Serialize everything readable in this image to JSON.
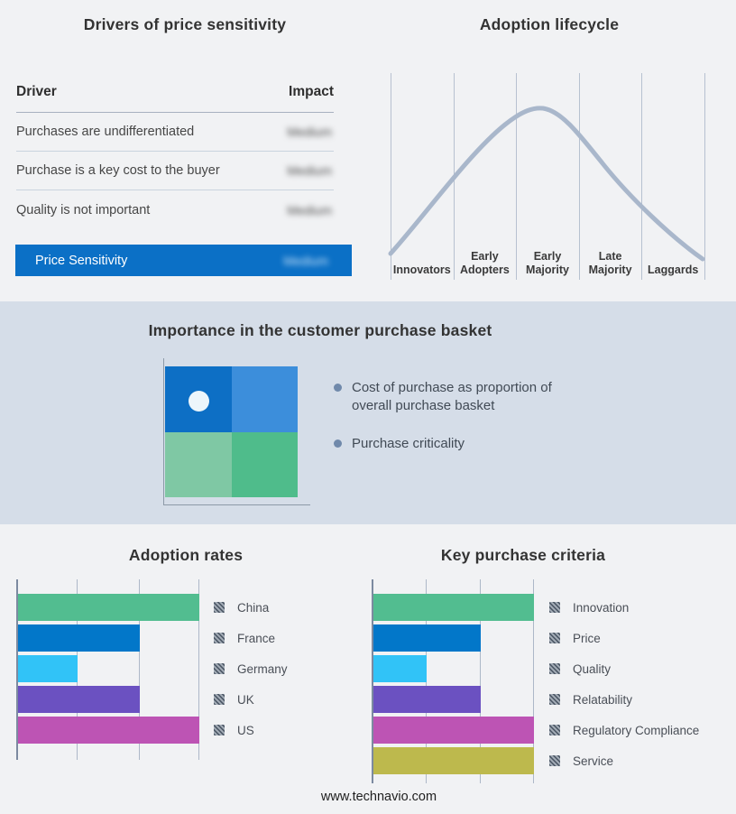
{
  "page": {
    "background": "#f1f2f4",
    "band_background": "#d5dde8",
    "footer": "www.technavio.com"
  },
  "drivers_panel": {
    "title": "Drivers of price sensitivity",
    "columns": [
      "Driver",
      "Impact"
    ],
    "rows": [
      {
        "driver": "Purchases are undifferentiated",
        "impact": "Medium",
        "impact_blurred": true
      },
      {
        "driver": "Purchase is a key cost to the buyer",
        "impact": "Medium",
        "impact_blurred": true
      },
      {
        "driver": "Quality is not important",
        "impact": "Medium",
        "impact_blurred": true
      }
    ],
    "summary_row": {
      "label": "Price Sensitivity",
      "impact": "Medium",
      "impact_blurred": true,
      "background": "#0b70c6"
    }
  },
  "basket_panel": {
    "title": "Importance in the customer purchase basket",
    "bullets": [
      "Cost of purchase as proportion of overall purchase basket",
      "Purchase criticality"
    ],
    "quadrant_colors": {
      "top_left": "#0d6fc5",
      "top_right": "#3c8edb",
      "bottom_left": "#7fc8a4",
      "bottom_right": "#4fbc8b"
    },
    "dot_color": "#edf6fb"
  },
  "chart_data": [
    {
      "id": "adoption_lifecycle",
      "type": "line",
      "title": "Adoption lifecycle",
      "categories": [
        "Innovators",
        "Early Adopters",
        "Early Majority",
        "Late Majority",
        "Laggards"
      ],
      "description": "Bell-shaped diffusion curve rising from Innovators, peaking over Early Majority, declining through Laggards",
      "line_color": "#a9b7cb",
      "grid": "vertical dividers between stages",
      "legend_position": "none"
    },
    {
      "id": "adoption_rates",
      "type": "bar",
      "title": "Adoption rates",
      "orientation": "horizontal",
      "categories": [
        "China",
        "France",
        "Germany",
        "UK",
        "US"
      ],
      "values": [
        100,
        67,
        33,
        67,
        100
      ],
      "colors": [
        "#52bd90",
        "#0277c9",
        "#31c3f7",
        "#6b51c1",
        "#bd54b4"
      ],
      "xlim": [
        0,
        100
      ],
      "gridlines": [
        0,
        33,
        67,
        100
      ],
      "xlabel": "",
      "ylabel": "",
      "legend_position": "right"
    },
    {
      "id": "key_purchase_criteria",
      "type": "bar",
      "title": "Key purchase criteria",
      "orientation": "horizontal",
      "categories": [
        "Innovation",
        "Price",
        "Quality",
        "Relatability",
        "Regulatory Compliance",
        "Service"
      ],
      "values": [
        100,
        67,
        33,
        67,
        100,
        100
      ],
      "colors": [
        "#52bd90",
        "#0277c9",
        "#31c3f7",
        "#6b51c1",
        "#bd54b4",
        "#bdb94d"
      ],
      "xlim": [
        0,
        100
      ],
      "gridlines": [
        0,
        33,
        67,
        100
      ],
      "xlabel": "",
      "ylabel": "",
      "legend_position": "right"
    }
  ]
}
